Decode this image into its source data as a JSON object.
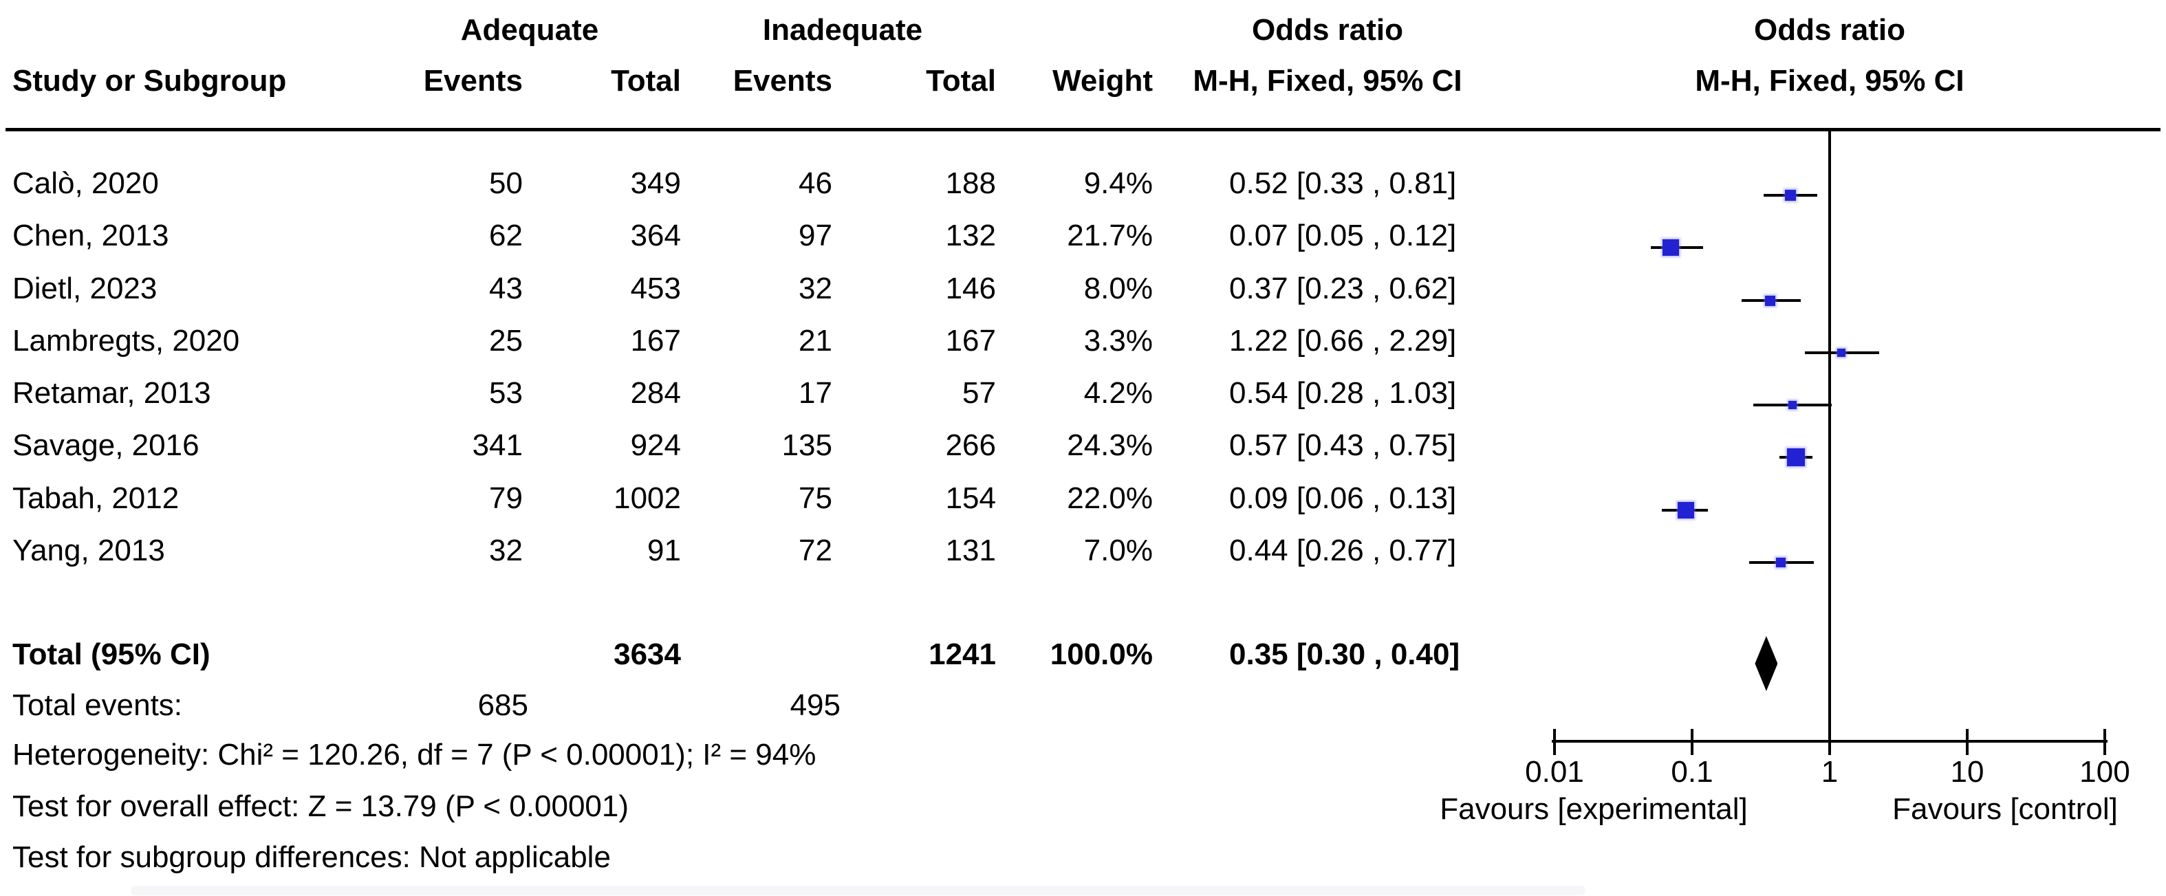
{
  "header": {
    "group1": "Adequate",
    "group2": "Inadequate",
    "col_study": "Study or Subgroup",
    "col_events": "Events",
    "col_total": "Total",
    "col_weight": "Weight",
    "or_title_left": "Odds ratio",
    "or_method_left": "M-H, Fixed, 95% CI",
    "or_title_right": "Odds ratio",
    "or_method_right": "M-H, Fixed, 95% CI"
  },
  "colors": {
    "marker_blue": "#2222d2",
    "line_black": "#000000",
    "diamond_black": "#000000"
  },
  "chart_data": {
    "type": "scatter",
    "variant": "forest-plot",
    "effect_measure": "Odds ratio, M-H, Fixed, 95% CI",
    "x_axis": {
      "scale": "log",
      "ticks": [
        0.01,
        0.1,
        1,
        10,
        100
      ],
      "tick_labels": [
        "0.01",
        "0.1",
        "1",
        "10",
        "100"
      ],
      "favours_left": "Favours [experimental]",
      "favours_right": "Favours [control]"
    },
    "studies": [
      {
        "name": "Calò, 2020",
        "events1": "50",
        "total1": "349",
        "events2": "46",
        "total2": "188",
        "weight": "9.4%",
        "weight_pct": 9.4,
        "or": 0.52,
        "ci_low": 0.33,
        "ci_high": 0.81,
        "ci_label": "0.52 [0.33 , 0.81]"
      },
      {
        "name": "Chen, 2013",
        "events1": "62",
        "total1": "364",
        "events2": "97",
        "total2": "132",
        "weight": "21.7%",
        "weight_pct": 21.7,
        "or": 0.07,
        "ci_low": 0.05,
        "ci_high": 0.12,
        "ci_label": "0.07 [0.05 , 0.12]"
      },
      {
        "name": "Dietl, 2023",
        "events1": "43",
        "total1": "453",
        "events2": "32",
        "total2": "146",
        "weight": "8.0%",
        "weight_pct": 8.0,
        "or": 0.37,
        "ci_low": 0.23,
        "ci_high": 0.62,
        "ci_label": "0.37 [0.23 , 0.62]"
      },
      {
        "name": "Lambregts, 2020",
        "events1": "25",
        "total1": "167",
        "events2": "21",
        "total2": "167",
        "weight": "3.3%",
        "weight_pct": 3.3,
        "or": 1.22,
        "ci_low": 0.66,
        "ci_high": 2.29,
        "ci_label": "1.22 [0.66 , 2.29]"
      },
      {
        "name": "Retamar, 2013",
        "events1": "53",
        "total1": "284",
        "events2": "17",
        "total2": "57",
        "weight": "4.2%",
        "weight_pct": 4.2,
        "or": 0.54,
        "ci_low": 0.28,
        "ci_high": 1.03,
        "ci_label": "0.54 [0.28 , 1.03]"
      },
      {
        "name": "Savage, 2016",
        "events1": "341",
        "total1": "924",
        "events2": "135",
        "total2": "266",
        "weight": "24.3%",
        "weight_pct": 24.3,
        "or": 0.57,
        "ci_low": 0.43,
        "ci_high": 0.75,
        "ci_label": "0.57 [0.43 , 0.75]"
      },
      {
        "name": "Tabah, 2012",
        "events1": "79",
        "total1": "1002",
        "events2": "75",
        "total2": "154",
        "weight": "22.0%",
        "weight_pct": 22.0,
        "or": 0.09,
        "ci_low": 0.06,
        "ci_high": 0.13,
        "ci_label": "0.09 [0.06 , 0.13]"
      },
      {
        "name": "Yang, 2013",
        "events1": "32",
        "total1": "91",
        "events2": "72",
        "total2": "131",
        "weight": "7.0%",
        "weight_pct": 7.0,
        "or": 0.44,
        "ci_low": 0.26,
        "ci_high": 0.77,
        "ci_label": "0.44 [0.26 , 0.77]"
      }
    ],
    "total": {
      "label": "Total (95% CI)",
      "total1": "3634",
      "total2": "1241",
      "weight": "100.0%",
      "or": 0.35,
      "ci_low": 0.3,
      "ci_high": 0.4,
      "ci_label": "0.35 [0.30 , 0.40]"
    },
    "total_events": {
      "label": "Total events:",
      "events1": "685",
      "events2": "495"
    },
    "footnotes": [
      "Heterogeneity: Chi² = 120.26, df = 7 (P < 0.00001); I² = 94%",
      "Test for overall effect: Z = 13.79 (P < 0.00001)",
      "Test for subgroup differences: Not applicable"
    ]
  }
}
